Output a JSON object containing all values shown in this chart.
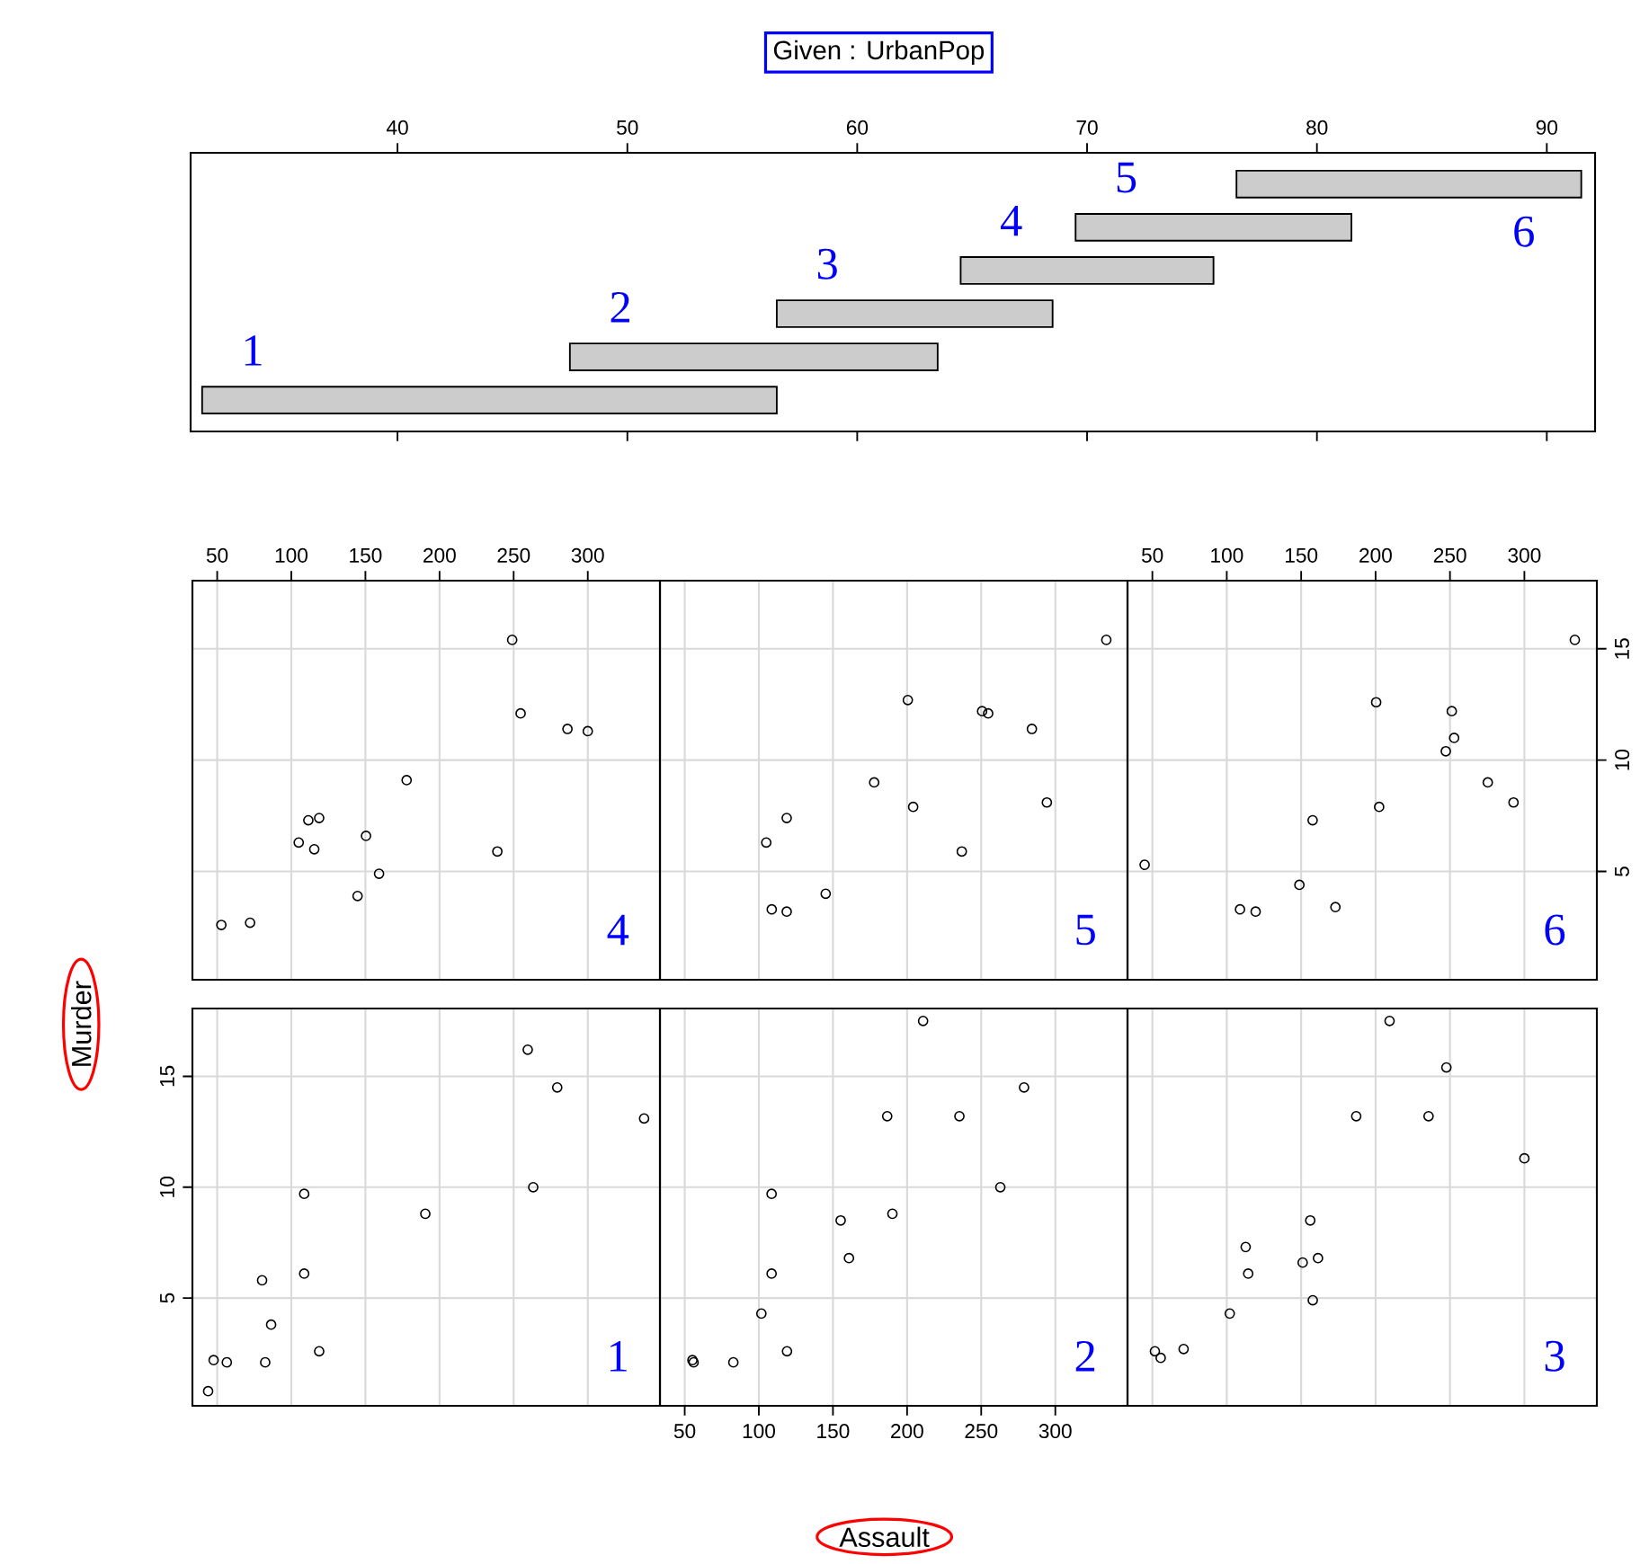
{
  "chart_data": [
    {
      "type": "bar",
      "orientation": "horizontal",
      "xlabel": "Given : UrbanPop",
      "categories": [
        null,
        null,
        null,
        null,
        null,
        null
      ],
      "annotations": [
        "6",
        "5",
        "4",
        "3",
        "2",
        "1"
      ],
      "base": [
        76.5,
        69.5,
        64.5,
        56.5,
        47.5,
        31.5
      ],
      "values": [
        15,
        12,
        11,
        12,
        16,
        25
      ],
      "color": "#cccccc",
      "xlim": [
        31.0,
        92.1
      ],
      "xticks": [
        40,
        50,
        60,
        70,
        80,
        90
      ]
    },
    {
      "type": "scatter",
      "title": "4",
      "x": [
        249,
        254.7,
        286.3,
        300,
        177.8,
        111.5,
        118.8,
        150.4,
        105,
        115.5,
        239,
        159.2,
        144.7,
        52.8,
        72.2
      ],
      "values": [
        15.4,
        12.1,
        11.4,
        11.3,
        9.1,
        7.3,
        7.4,
        6.6,
        6.3,
        6.0,
        5.9,
        4.9,
        3.9,
        2.6,
        2.7
      ],
      "color": "#000000",
      "marker": "circle",
      "xlim": [
        33.3,
        348.7
      ],
      "ylim": [
        0.14,
        18.06
      ],
      "xticks": [
        50,
        100,
        150,
        200,
        250,
        300
      ],
      "yticks": [
        5,
        10,
        15
      ],
      "grid": true,
      "tick_labels": "x"
    },
    {
      "type": "scatter",
      "title": "5",
      "x": [
        334.4,
        200.5,
        250.6,
        254.7,
        284.2,
        177.8,
        294.3,
        204.1,
        118.8,
        105,
        236.9,
        145.1,
        108.7,
        118.8
      ],
      "values": [
        15.4,
        12.7,
        12.2,
        12.1,
        11.4,
        9.0,
        8.1,
        7.9,
        7.4,
        6.3,
        5.9,
        4.0,
        3.3,
        3.2
      ],
      "color": "#000000",
      "marker": "circle",
      "xlim": [
        33.3,
        348.7
      ],
      "ylim": [
        0.14,
        18.06
      ],
      "xticks": [
        50,
        100,
        150,
        200,
        250,
        300
      ],
      "yticks": [
        5,
        10,
        15
      ],
      "grid": true,
      "tick_labels": false
    },
    {
      "type": "scatter",
      "title": "6",
      "x": [
        333.9,
        200.4,
        251.2,
        252.8,
        247.2,
        275.4,
        292.7,
        202.4,
        157.7,
        44.8,
        148.8,
        173,
        108.9,
        119.4
      ],
      "values": [
        15.4,
        12.6,
        12.2,
        11.0,
        10.4,
        9.0,
        8.1,
        7.9,
        7.3,
        5.3,
        4.4,
        3.4,
        3.3,
        3.2
      ],
      "color": "#000000",
      "marker": "circle",
      "xlim": [
        33.3,
        348.7
      ],
      "ylim": [
        0.14,
        18.06
      ],
      "xticks": [
        50,
        100,
        150,
        200,
        250,
        300
      ],
      "yticks": [
        5,
        10,
        15
      ],
      "grid": true
    },
    {
      "type": "scatter",
      "title": "1",
      "ylabel": "Murder",
      "x": [
        259.5,
        279.4,
        338,
        263.2,
        108.7,
        190.4,
        80.3,
        108.7,
        86.4,
        118.8,
        82.4,
        47.6,
        56.5,
        43.9
      ],
      "values": [
        16.2,
        14.5,
        13.1,
        10.0,
        9.7,
        8.8,
        5.8,
        6.1,
        3.8,
        2.6,
        2.1,
        2.2,
        2.1,
        0.8
      ],
      "color": "#000000",
      "marker": "circle",
      "xlim": [
        33.3,
        348.7
      ],
      "ylim": [
        0.14,
        18.06
      ],
      "xticks": [
        50,
        100,
        150,
        200,
        250,
        300
      ],
      "yticks": [
        5,
        10,
        15
      ],
      "grid": true,
      "tick_labels": "y"
    },
    {
      "type": "scatter",
      "title": "2",
      "xlabel": "Assault",
      "x": [
        210.8,
        278.9,
        186.6,
        235.3,
        262.9,
        108.6,
        190.1,
        155.2,
        160.8,
        108.6,
        101.7,
        119,
        82.8,
        55.2,
        56.0
      ],
      "values": [
        17.5,
        14.5,
        13.2,
        13.2,
        10.0,
        9.7,
        8.8,
        8.5,
        6.8,
        6.1,
        4.3,
        2.6,
        2.1,
        2.2,
        2.1
      ],
      "color": "#000000",
      "marker": "circle",
      "xlim": [
        33.3,
        348.7
      ],
      "ylim": [
        0.14,
        18.06
      ],
      "xticks": [
        50,
        100,
        150,
        200,
        250,
        300
      ],
      "yticks": [
        5,
        10,
        15
      ],
      "grid": true,
      "tick_labels": "x"
    },
    {
      "type": "scatter",
      "title": "3",
      "x": [
        209.4,
        247.6,
        187,
        235.6,
        300,
        156.1,
        112.7,
        161.3,
        151,
        114.4,
        157.8,
        102,
        71,
        51.7,
        55.6
      ],
      "values": [
        17.5,
        15.4,
        13.2,
        13.2,
        11.3,
        8.5,
        7.3,
        6.8,
        6.6,
        6.1,
        4.9,
        4.3,
        2.7,
        2.6,
        2.3
      ],
      "color": "#000000",
      "marker": "circle",
      "xlim": [
        33.3,
        348.7
      ],
      "ylim": [
        0.14,
        18.06
      ],
      "xticks": [
        50,
        100,
        150,
        200,
        250,
        300
      ],
      "yticks": [
        5,
        10,
        15
      ],
      "grid": true,
      "tick_labels": false
    }
  ]
}
